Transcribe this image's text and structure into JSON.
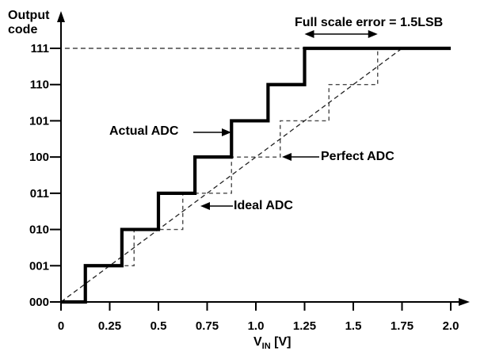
{
  "labels": {
    "y_axis_title": "Output\ncode",
    "x_axis_title": {
      "prefix": "V",
      "sub": "IN",
      "suffix": " [V]"
    }
  },
  "annotations": {
    "full_scale_error": "Full scale error = 1.5LSB",
    "actual_adc": "Actual ADC",
    "perfect_adc": "Perfect ADC",
    "ideal_adc": "Ideal ADC"
  },
  "colors": {
    "ink": "#000000",
    "dashed_staircase": "#4a4a4a",
    "dashed_line": "#222222",
    "background": "#ffffff"
  },
  "chart_data": {
    "type": "line",
    "subtype": "adc-transfer-function-staircase",
    "title": "",
    "xlabel": "VIN [V]",
    "ylabel": "Output code",
    "xlim": [
      0,
      2.0
    ],
    "ylim_codes": [
      0,
      7
    ],
    "grid": false,
    "lsb_volts": 0.25,
    "x_ticks": [
      {
        "v": 0.0,
        "label": "0"
      },
      {
        "v": 0.25,
        "label": "0.25"
      },
      {
        "v": 0.5,
        "label": "0.5"
      },
      {
        "v": 0.75,
        "label": "0.75"
      },
      {
        "v": 1.0,
        "label": "1.0"
      },
      {
        "v": 1.25,
        "label": "1.25"
      },
      {
        "v": 1.5,
        "label": "1.5"
      },
      {
        "v": 1.75,
        "label": "1.75"
      },
      {
        "v": 2.0,
        "label": "2.0"
      }
    ],
    "y_ticks": [
      "000",
      "001",
      "010",
      "011",
      "100",
      "101",
      "110",
      "111"
    ],
    "series": [
      {
        "name": "Actual ADC",
        "kind": "staircase",
        "style": "solid-thick",
        "start_code": 0,
        "code_transitions_v": [
          0.125,
          0.3125,
          0.5,
          0.6875,
          0.875,
          1.0625,
          1.25
        ],
        "x_start": 0.0,
        "x_end": 2.0
      },
      {
        "name": "Perfect ADC",
        "kind": "staircase",
        "style": "dashed-thin",
        "start_code": 0,
        "code_transitions_v": [
          0.125,
          0.375,
          0.625,
          0.875,
          1.125,
          1.375,
          1.625
        ],
        "x_start": 0.0,
        "x_end": 2.0
      },
      {
        "name": "Ideal ADC",
        "kind": "straight-line",
        "style": "dashed-thin",
        "points_v_code": [
          [
            0.0,
            0
          ],
          [
            1.75,
            7
          ]
        ]
      }
    ],
    "reference_line": {
      "code": 7,
      "from_v": 0.02,
      "to_v": 1.25,
      "style": "dashed"
    },
    "error_arrow": {
      "from_v": 1.25,
      "to_v": 1.625,
      "label": "Full scale error = 1.5LSB"
    }
  }
}
